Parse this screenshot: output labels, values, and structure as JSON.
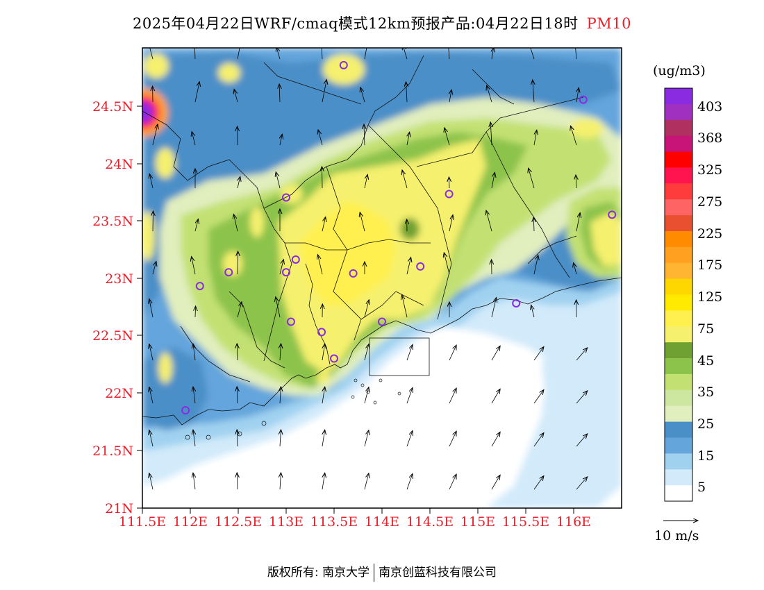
{
  "title": {
    "main": "2025年04月22日WRF/cmaq模式12km预报产品:04月22日18时",
    "variable": "PM10"
  },
  "axes": {
    "lat_labels": [
      "24.5N",
      "24N",
      "23.5N",
      "23N",
      "22.5N",
      "22N",
      "21.5N",
      "21N"
    ],
    "lon_labels": [
      "111.5E",
      "112E",
      "112.5E",
      "113E",
      "113.5E",
      "114E",
      "114.5E",
      "115E",
      "115.5E",
      "116E"
    ]
  },
  "colorbar": {
    "unit": "(ug/m3)",
    "labels": [
      "403",
      "368",
      "325",
      "275",
      "225",
      "175",
      "125",
      "75",
      "45",
      "35",
      "25",
      "15",
      "5"
    ],
    "colors": [
      "#8a2be2",
      "#a030c0",
      "#b03060",
      "#c81478",
      "#ff0000",
      "#ff1450",
      "#ff3c3c",
      "#ff6464",
      "#e85030",
      "#ff8c00",
      "#ffa020",
      "#ffb432",
      "#ffd700",
      "#ffea00",
      "#fff050",
      "#f5f06e",
      "#6ea032",
      "#8cc34b",
      "#c3e173",
      "#cde6a0",
      "#e1eebe",
      "#4b8fc8",
      "#64a5dc",
      "#a0d2f0",
      "#d2eafa",
      "#ffffff"
    ]
  },
  "wind_legend": {
    "label": "10 m/s"
  },
  "footer": {
    "left": "版权所有: 南京大学",
    "right": "南京创蓝科技有限公司"
  },
  "map": {
    "lon_range": [
      111.5,
      116.5
    ],
    "lat_range": [
      21.0,
      25.0
    ],
    "colors": {
      "sea": "#ffffff",
      "light_blue": "#d2eafa",
      "blue": "#a0d2f0",
      "mid_blue": "#64a5dc",
      "dark_blue": "#4b8fc8",
      "pale_green": "#e1eebe",
      "light_green": "#c3e173",
      "green": "#8cc34b",
      "dark_green": "#6ea032",
      "pale_yellow": "#f5f06e",
      "yellow": "#fff050",
      "orange": "#ffa020",
      "red": "#ff1450",
      "purple": "#8a2be2"
    },
    "stations": [
      {
        "lon": 113.6,
        "lat": 24.85
      },
      {
        "lon": 116.1,
        "lat": 24.55
      },
      {
        "lon": 113.0,
        "lat": 23.7
      },
      {
        "lon": 114.7,
        "lat": 23.73
      },
      {
        "lon": 116.4,
        "lat": 23.55
      },
      {
        "lon": 113.1,
        "lat": 23.16
      },
      {
        "lon": 113.0,
        "lat": 23.05
      },
      {
        "lon": 112.4,
        "lat": 23.05
      },
      {
        "lon": 113.7,
        "lat": 23.04
      },
      {
        "lon": 114.4,
        "lat": 23.1
      },
      {
        "lon": 112.1,
        "lat": 22.93
      },
      {
        "lon": 115.4,
        "lat": 22.78
      },
      {
        "lon": 113.05,
        "lat": 22.62
      },
      {
        "lon": 113.37,
        "lat": 22.53
      },
      {
        "lon": 114.0,
        "lat": 22.62
      },
      {
        "lon": 113.5,
        "lat": 22.3
      },
      {
        "lon": 111.95,
        "lat": 21.85
      }
    ]
  }
}
